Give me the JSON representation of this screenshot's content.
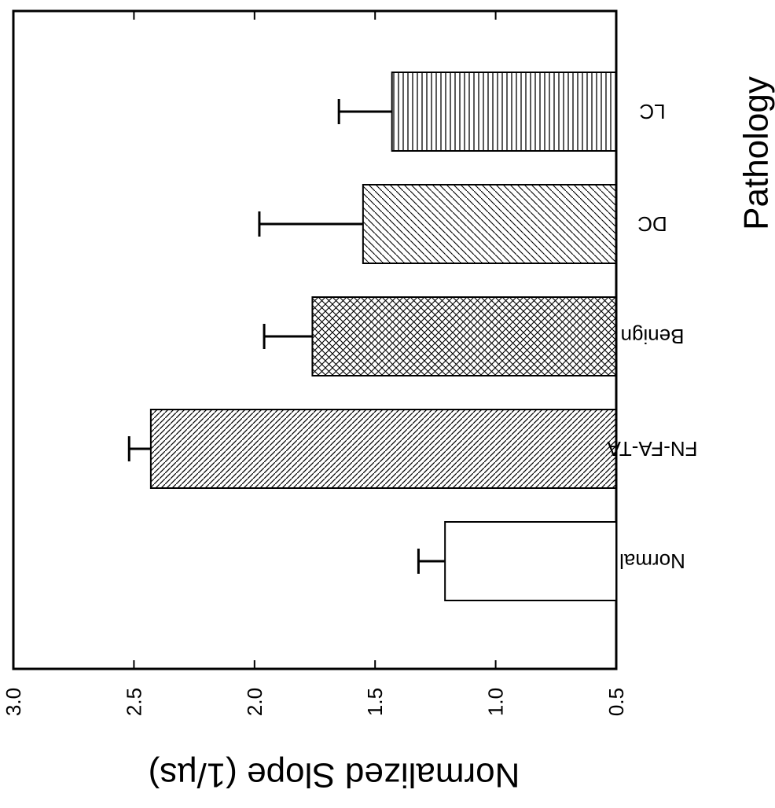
{
  "chart_data": {
    "type": "bar",
    "orientation": "horizontal",
    "xlabel": "Pathology",
    "ylabel": "Normalized Slope (1/µs)",
    "ylim": [
      0.5,
      3.0
    ],
    "yticks": [
      "0.5",
      "1.0",
      "1.5",
      "2.0",
      "2.5",
      "3.0"
    ],
    "grid": false,
    "categories": [
      "Normal",
      "FN-FA-TA",
      "Benign",
      "DC",
      "LC"
    ],
    "values": [
      1.21,
      2.43,
      1.76,
      1.55,
      1.43
    ],
    "errors": [
      0.11,
      0.09,
      0.2,
      0.43,
      0.22
    ],
    "patterns": [
      "none",
      "diagonal-dense",
      "crosshatch",
      "diagonal-sparse",
      "vertical"
    ],
    "colors": {
      "bar_stroke": "#000000",
      "background": "#ffffff"
    }
  }
}
